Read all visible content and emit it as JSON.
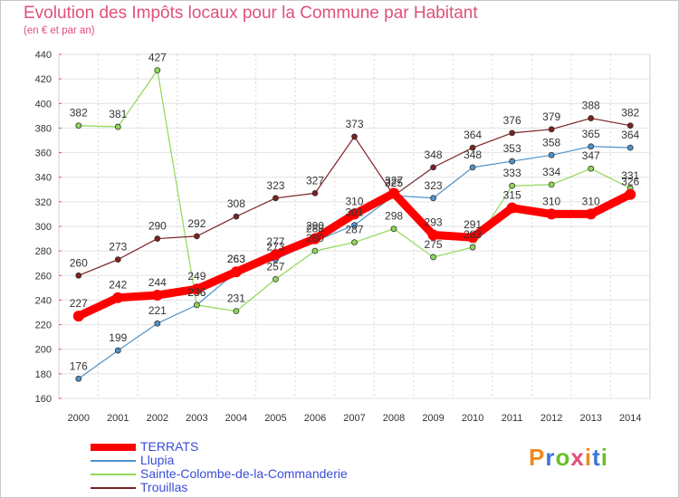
{
  "header": {
    "title": "Evolution des Impôts locaux pour la Commune par Habitant",
    "subtitle": "(en € et par an)"
  },
  "logo": {
    "text": "Proxiti",
    "colors": [
      "#f08a1c",
      "#3a7ad8",
      "#6cbf2a",
      "#e0507a"
    ]
  },
  "chart_data": {
    "type": "line",
    "title": "Evolution des Impôts locaux pour la Commune par Habitant",
    "subtitle": "(en € et par an)",
    "xlabel": "",
    "ylabel": "",
    "x": [
      2000,
      2001,
      2002,
      2003,
      2004,
      2005,
      2006,
      2007,
      2008,
      2009,
      2010,
      2011,
      2012,
      2013,
      2014
    ],
    "ylim": [
      160,
      440
    ],
    "yticks": [
      160,
      180,
      200,
      220,
      240,
      260,
      280,
      300,
      320,
      340,
      360,
      380,
      400,
      420,
      440
    ],
    "grid": true,
    "legend_position": "bottom-left",
    "series": [
      {
        "name": "TERRATS",
        "color": "#ff0000",
        "values": [
          227,
          242,
          244,
          249,
          263,
          277,
          290,
          310,
          327,
          293,
          291,
          315,
          310,
          310,
          326
        ]
      },
      {
        "name": "Llupia",
        "color": "#4f92c9",
        "values": [
          176,
          199,
          221,
          236,
          263,
          273,
          288,
          301,
          325,
          323,
          348,
          353,
          358,
          365,
          364
        ]
      },
      {
        "name": "Sainte-Colombe-de-la-Commanderie",
        "color": "#8fd858",
        "values": [
          382,
          381,
          427,
          236,
          231,
          257,
          280,
          287,
          298,
          275,
          283,
          333,
          334,
          347,
          331
        ]
      },
      {
        "name": "Trouillas",
        "color": "#7a2222",
        "values": [
          260,
          273,
          290,
          292,
          308,
          323,
          327,
          373,
          325,
          348,
          364,
          376,
          379,
          388,
          382
        ]
      }
    ],
    "data_labels": [
      {
        "series": "TERRATS",
        "labels": [
          "227",
          "242",
          "244",
          "249",
          "263",
          "277",
          "290",
          "310",
          "327",
          "293",
          "291",
          "315",
          "310",
          "310",
          "326"
        ]
      },
      {
        "series": "Llupia",
        "labels": [
          "176",
          "199",
          "221",
          "236",
          "263",
          "273",
          "288",
          "301",
          "325",
          "323",
          "348",
          "353",
          "358",
          "365",
          "364"
        ]
      },
      {
        "series": "Sainte-Colombe-de-la-Commanderie",
        "labels": [
          "382",
          "381",
          "427",
          "236",
          "231",
          "257",
          "280",
          "287",
          "298",
          "275",
          "283",
          "333",
          "334",
          "347",
          "331"
        ]
      },
      {
        "series": "Trouillas",
        "labels": [
          "260",
          "273",
          "290",
          "292",
          "308",
          "323",
          "327",
          "373",
          "325",
          "348",
          "364",
          "376",
          "379",
          "388",
          "382"
        ]
      }
    ]
  },
  "legend": {
    "items": [
      {
        "label": "TERRATS",
        "color": "#ff0000"
      },
      {
        "label": "Llupia",
        "color": "#4f92c9"
      },
      {
        "label": "Sainte-Colombe-de-la-Commanderie",
        "color": "#8fd858"
      },
      {
        "label": "Trouillas",
        "color": "#7a2222"
      }
    ]
  }
}
